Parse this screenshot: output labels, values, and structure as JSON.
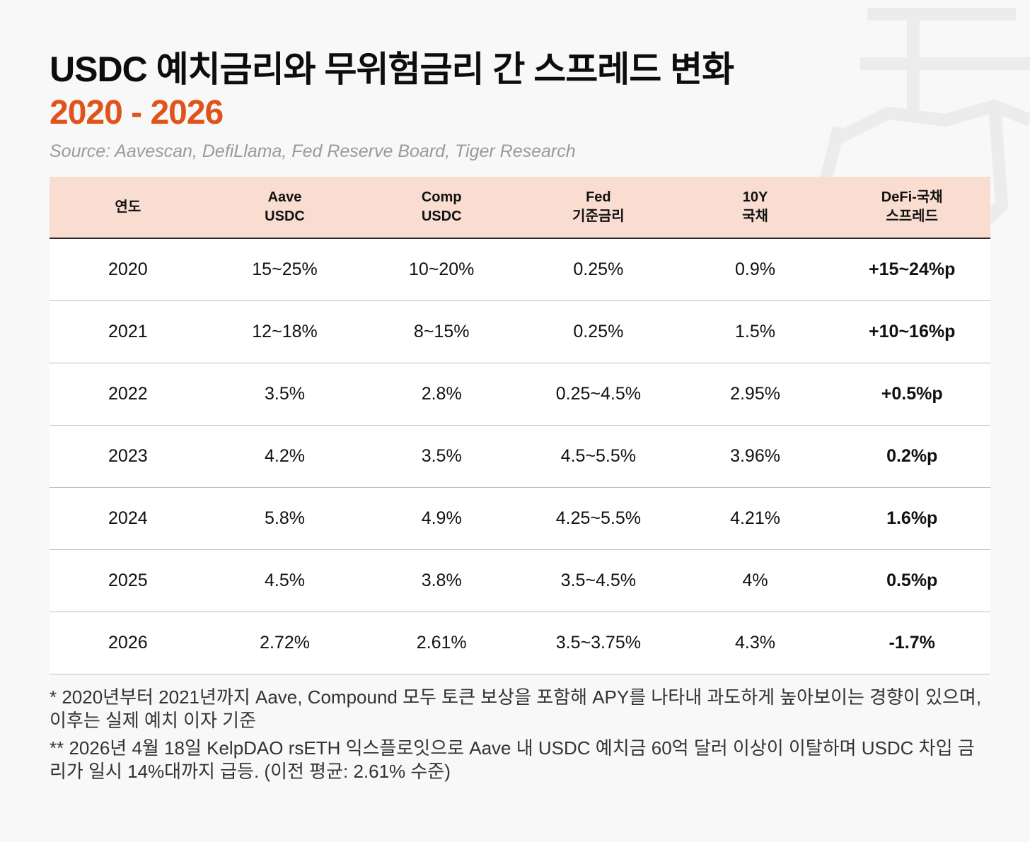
{
  "title": "USDC 예치금리와 무위험금리 간 스프레드 변화",
  "subtitle": "2020 - 2026",
  "source": "Source: Aavescan, DefiLlama, Fed Reserve Board, Tiger Research",
  "colors": {
    "accent": "#e0531a",
    "header_bg": "#f9ddd0",
    "row_bg": "#ffffff",
    "page_bg": "#f8f8f8"
  },
  "table": {
    "headers": [
      "연도",
      "Aave\nUSDC",
      "Comp\nUSDC",
      "Fed\n기준금리",
      "10Y\n국채",
      "DeFi-국채\n스프레드"
    ],
    "rows": [
      [
        "2020",
        "15~25%",
        "10~20%",
        "0.25%",
        "0.9%",
        "+15~24%p"
      ],
      [
        "2021",
        "12~18%",
        "8~15%",
        "0.25%",
        "1.5%",
        "+10~16%p"
      ],
      [
        "2022",
        "3.5%",
        "2.8%",
        "0.25~4.5%",
        "2.95%",
        "+0.5%p"
      ],
      [
        "2023",
        "4.2%",
        "3.5%",
        "4.5~5.5%",
        "3.96%",
        "0.2%p"
      ],
      [
        "2024",
        "5.8%",
        "4.9%",
        "4.25~5.5%",
        "4.21%",
        "1.6%p"
      ],
      [
        "2025",
        "4.5%",
        "3.8%",
        "3.5~4.5%",
        "4%",
        "0.5%p"
      ],
      [
        "2026",
        "2.72%",
        "2.61%",
        "3.5~3.75%",
        "4.3%",
        "-1.7%"
      ]
    ]
  },
  "notes": [
    "* 2020년부터 2021년까지 Aave, Compound 모두 토큰 보상을 포함해 APY를 나타내 과도하게 높아보이는 경향이 있으며, 이후는 실제 예치 이자 기준",
    "** 2026년 4월 18일 KelpDAO rsETH 익스플로잇으로 Aave 내 USDC 예치금 60억 달러 이상이 이탈하며 USDC 차입 금리가 일시 14%대까지 급등. (이전 평균: 2.61% 수준)"
  ]
}
